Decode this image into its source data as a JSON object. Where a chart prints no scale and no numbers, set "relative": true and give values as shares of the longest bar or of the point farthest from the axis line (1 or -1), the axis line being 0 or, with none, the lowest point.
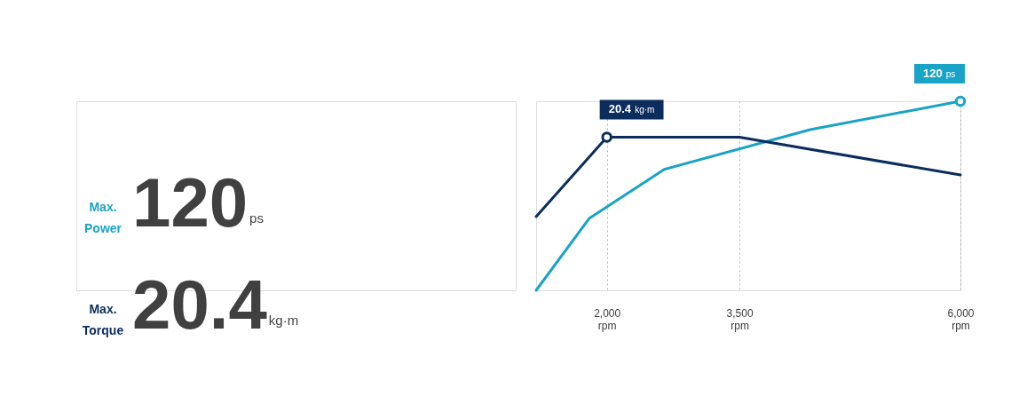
{
  "chart_data": [
    {
      "type": "other",
      "annotations": [
        "Max. Power",
        "120",
        "ps",
        "Max. Torque",
        "20.4",
        "kg·m"
      ]
    },
    {
      "type": "line",
      "relative": true,
      "xlim": [
        1200,
        6000
      ],
      "xticks": [
        {
          "value": 2000,
          "label": "2,000 rpm"
        },
        {
          "value": 3500,
          "label": "3,500 rpm"
        },
        {
          "value": 6000,
          "label": "6,000 rpm"
        }
      ],
      "grid": "x",
      "series": [
        {
          "color": "#19a3c6",
          "x": [
            1200,
            1800,
            2650,
            4300,
            6000
          ],
          "values": [
            0,
            0.38,
            0.64,
            0.85,
            1
          ]
        },
        {
          "color": "#0b2d5e",
          "x": [
            1200,
            2000,
            3500,
            6000
          ],
          "values": [
            0.39,
            0.81,
            0.81,
            0.61
          ]
        }
      ],
      "annotations": [
        {
          "text": "20.4 kg·m",
          "x": 2000,
          "y": 0.81
        },
        {
          "text": "120 ps",
          "x": 6000,
          "y": 1
        }
      ]
    }
  ]
}
